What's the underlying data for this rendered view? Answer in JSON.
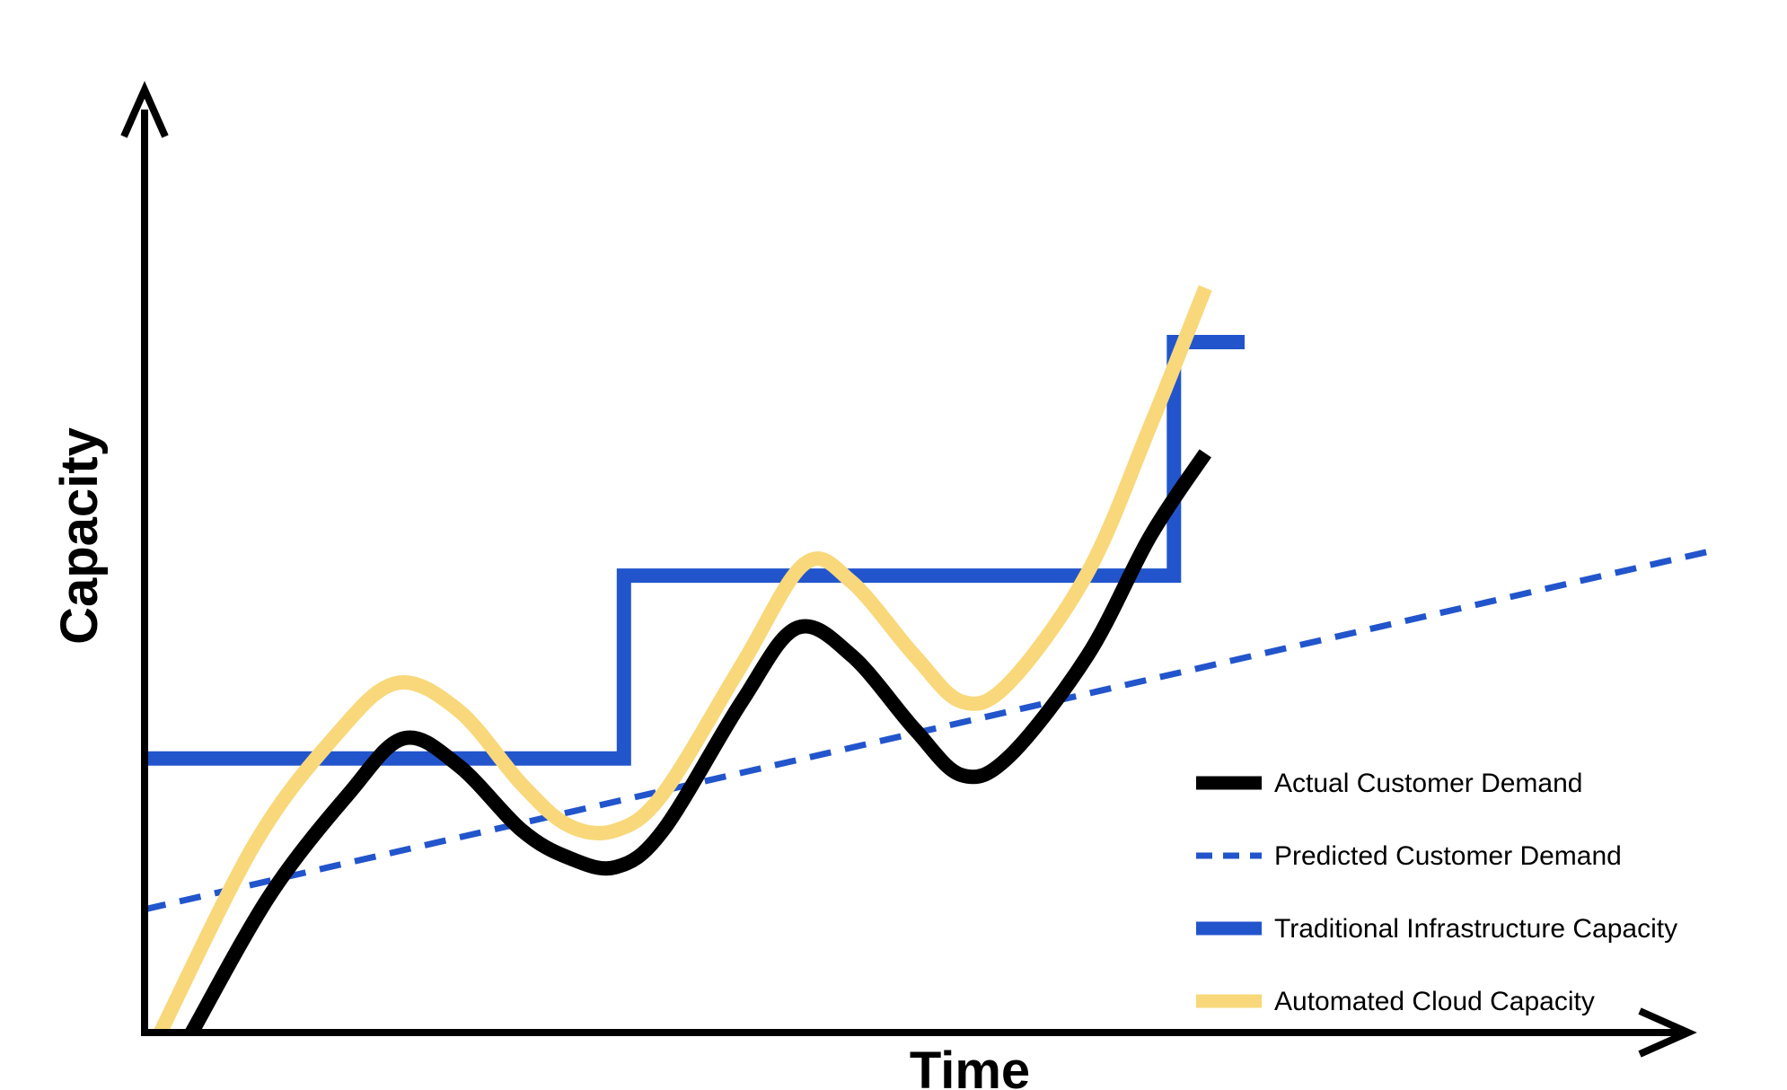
{
  "chart_data": {
    "type": "line",
    "xlabel": "Time",
    "ylabel": "Capacity",
    "xlim": [
      0,
      100
    ],
    "ylim": [
      0,
      100
    ],
    "grid": false,
    "legend_position": "bottom-right",
    "series": [
      {
        "name": "Actual Customer Demand",
        "color": "#000000",
        "style": "solid",
        "points": [
          [
            3,
            0
          ],
          [
            8,
            15
          ],
          [
            13,
            26
          ],
          [
            16.5,
            32
          ],
          [
            20,
            29
          ],
          [
            24,
            22
          ],
          [
            27,
            19
          ],
          [
            30,
            18
          ],
          [
            33,
            22
          ],
          [
            38,
            36
          ],
          [
            41.5,
            44
          ],
          [
            45,
            41
          ],
          [
            49,
            33
          ],
          [
            52,
            28
          ],
          [
            55,
            30
          ],
          [
            60,
            41
          ],
          [
            64,
            54
          ],
          [
            67.5,
            63
          ]
        ]
      },
      {
        "name": "Predicted Customer Demand",
        "color": "#2255cc",
        "style": "dashed",
        "points": [
          [
            0,
            13.4
          ],
          [
            100,
            52.5
          ]
        ]
      },
      {
        "name": "Traditional Infrastructure Capacity",
        "color": "#2255cc",
        "style": "step",
        "points": [
          [
            0,
            29.8
          ],
          [
            30.5,
            29.8
          ],
          [
            30.5,
            49.7
          ],
          [
            65.5,
            49.7
          ],
          [
            65.5,
            75.1
          ],
          [
            70,
            75.1
          ]
        ]
      },
      {
        "name": "Automated Cloud Capacity",
        "color": "#f8d87a",
        "style": "solid",
        "points": [
          [
            1,
            0
          ],
          [
            7,
            20.5
          ],
          [
            12,
            32
          ],
          [
            16,
            38
          ],
          [
            20,
            35
          ],
          [
            24,
            27
          ],
          [
            27,
            22.5
          ],
          [
            30,
            22
          ],
          [
            33,
            26
          ],
          [
            38,
            40
          ],
          [
            42,
            51
          ],
          [
            45,
            49
          ],
          [
            49,
            41
          ],
          [
            52,
            36
          ],
          [
            55,
            38
          ],
          [
            60,
            50
          ],
          [
            64,
            66
          ],
          [
            67.5,
            81
          ]
        ]
      }
    ]
  }
}
